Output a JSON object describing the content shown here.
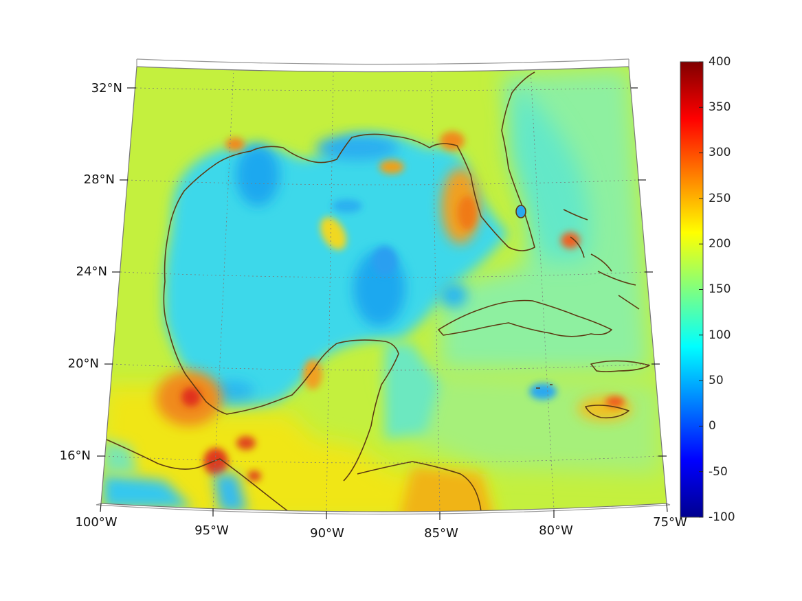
{
  "map": {
    "projection": "conic",
    "region": "Gulf of Mexico and Caribbean",
    "lat_labels": [
      "32°N",
      "28°N",
      "24°N",
      "20°N",
      "16°N"
    ],
    "lon_labels": [
      "100°W",
      "95°W",
      "90°W",
      "85°W",
      "80°W",
      "75°W"
    ],
    "coastline_color": "#5c3a12",
    "gridlines": "dotted"
  },
  "colorbar": {
    "labels": [
      "400",
      "350",
      "300",
      "250",
      "200",
      "150",
      "100",
      "50",
      "0",
      "-50",
      "-100"
    ],
    "min": -100,
    "max": 400,
    "colormap": "jet"
  },
  "colors": {
    "land_yellowgreen": "#c8f23a",
    "gulf_cyan": "#36d8ee",
    "deep_blue": "#1aa2f0",
    "hot_orange": "#f08a1c",
    "hot_red": "#e0321c",
    "yellow": "#f2f214",
    "frame": "#888888"
  }
}
